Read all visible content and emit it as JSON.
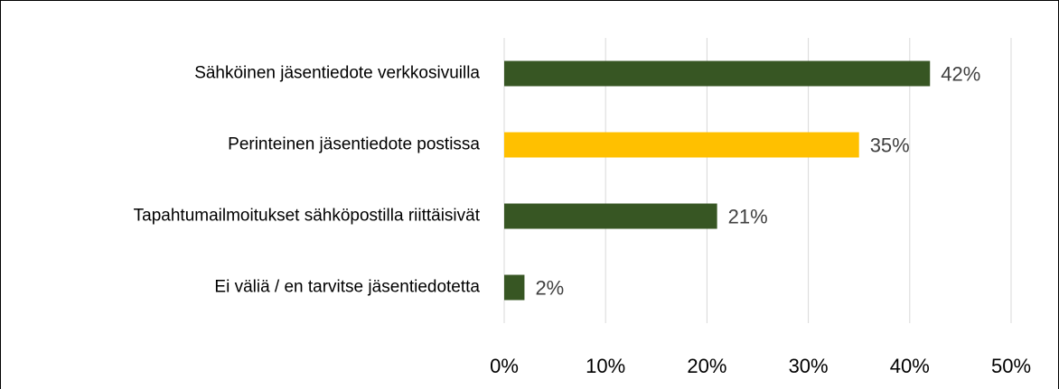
{
  "chart_data": {
    "type": "bar",
    "orientation": "horizontal",
    "categories": [
      "Sähköinen jäsentiedote verkkosivuilla",
      "Perinteinen jäsentiedote postissa",
      "Tapahtumailmoitukset sähköpostilla riittäisivät",
      "Ei väliä / en tarvitse jäsentiedotetta"
    ],
    "values": [
      42,
      35,
      21,
      2
    ],
    "value_labels": [
      "42%",
      "35%",
      "21%",
      "2%"
    ],
    "colors": [
      "#375623",
      "#FFC000",
      "#375623",
      "#375623"
    ],
    "xlim": [
      0,
      50
    ],
    "xticks": [
      {
        "value": 0,
        "label": "0%"
      },
      {
        "value": 10,
        "label": "10%"
      },
      {
        "value": 20,
        "label": "20%"
      },
      {
        "value": 30,
        "label": "30%"
      },
      {
        "value": 40,
        "label": "40%"
      },
      {
        "value": 50,
        "label": "50%"
      }
    ],
    "grid": true
  }
}
